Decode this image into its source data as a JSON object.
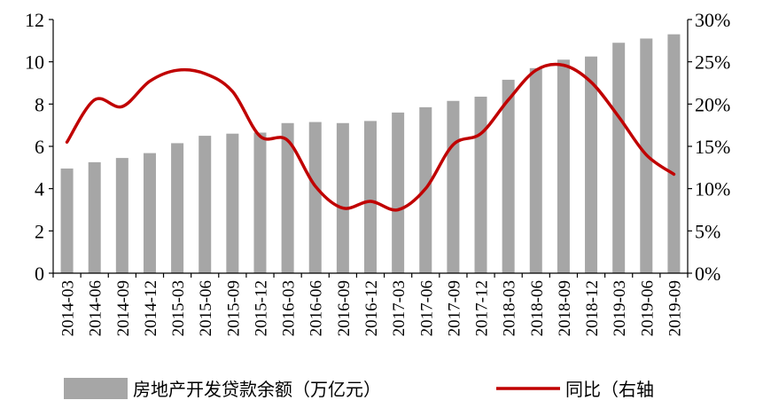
{
  "chart_data": {
    "type": "bar",
    "categories": [
      "2014-03",
      "2014-06",
      "2014-09",
      "2014-12",
      "2015-03",
      "2015-06",
      "2015-09",
      "2015-12",
      "2016-03",
      "2016-06",
      "2016-09",
      "2016-12",
      "2017-03",
      "2017-06",
      "2017-09",
      "2017-12",
      "2018-03",
      "2018-06",
      "2018-09",
      "2018-12",
      "2019-03",
      "2019-06",
      "2019-09"
    ],
    "series": [
      {
        "name": "房地产开发贷款余额（万亿元）",
        "type": "bar",
        "axis": "left",
        "color": "#a6a6a6",
        "values": [
          4.95,
          5.25,
          5.45,
          5.68,
          6.15,
          6.5,
          6.6,
          6.65,
          7.1,
          7.15,
          7.1,
          7.2,
          7.6,
          7.85,
          8.15,
          8.35,
          9.15,
          9.7,
          10.1,
          10.25,
          10.9,
          11.1,
          11.3
        ]
      },
      {
        "name": "同比（右轴",
        "type": "line",
        "axis": "right",
        "color": "#c00000",
        "values": [
          15.5,
          20.5,
          19.7,
          22.7,
          24.0,
          23.6,
          21.5,
          16.2,
          15.7,
          10.3,
          7.7,
          8.5,
          7.5,
          10.0,
          15.2,
          16.5,
          20.5,
          24.0,
          24.6,
          22.6,
          18.5,
          14.0,
          11.7
        ]
      }
    ],
    "y_left": {
      "ticks": [
        "0",
        "2",
        "4",
        "6",
        "8",
        "10",
        "12"
      ],
      "ylim": [
        0,
        12
      ]
    },
    "y_right": {
      "ticks": [
        "0%",
        "5%",
        "10%",
        "15%",
        "20%",
        "25%",
        "30%"
      ],
      "ylim": [
        0,
        30
      ]
    },
    "legend_placement": "bottom",
    "grid": false
  }
}
